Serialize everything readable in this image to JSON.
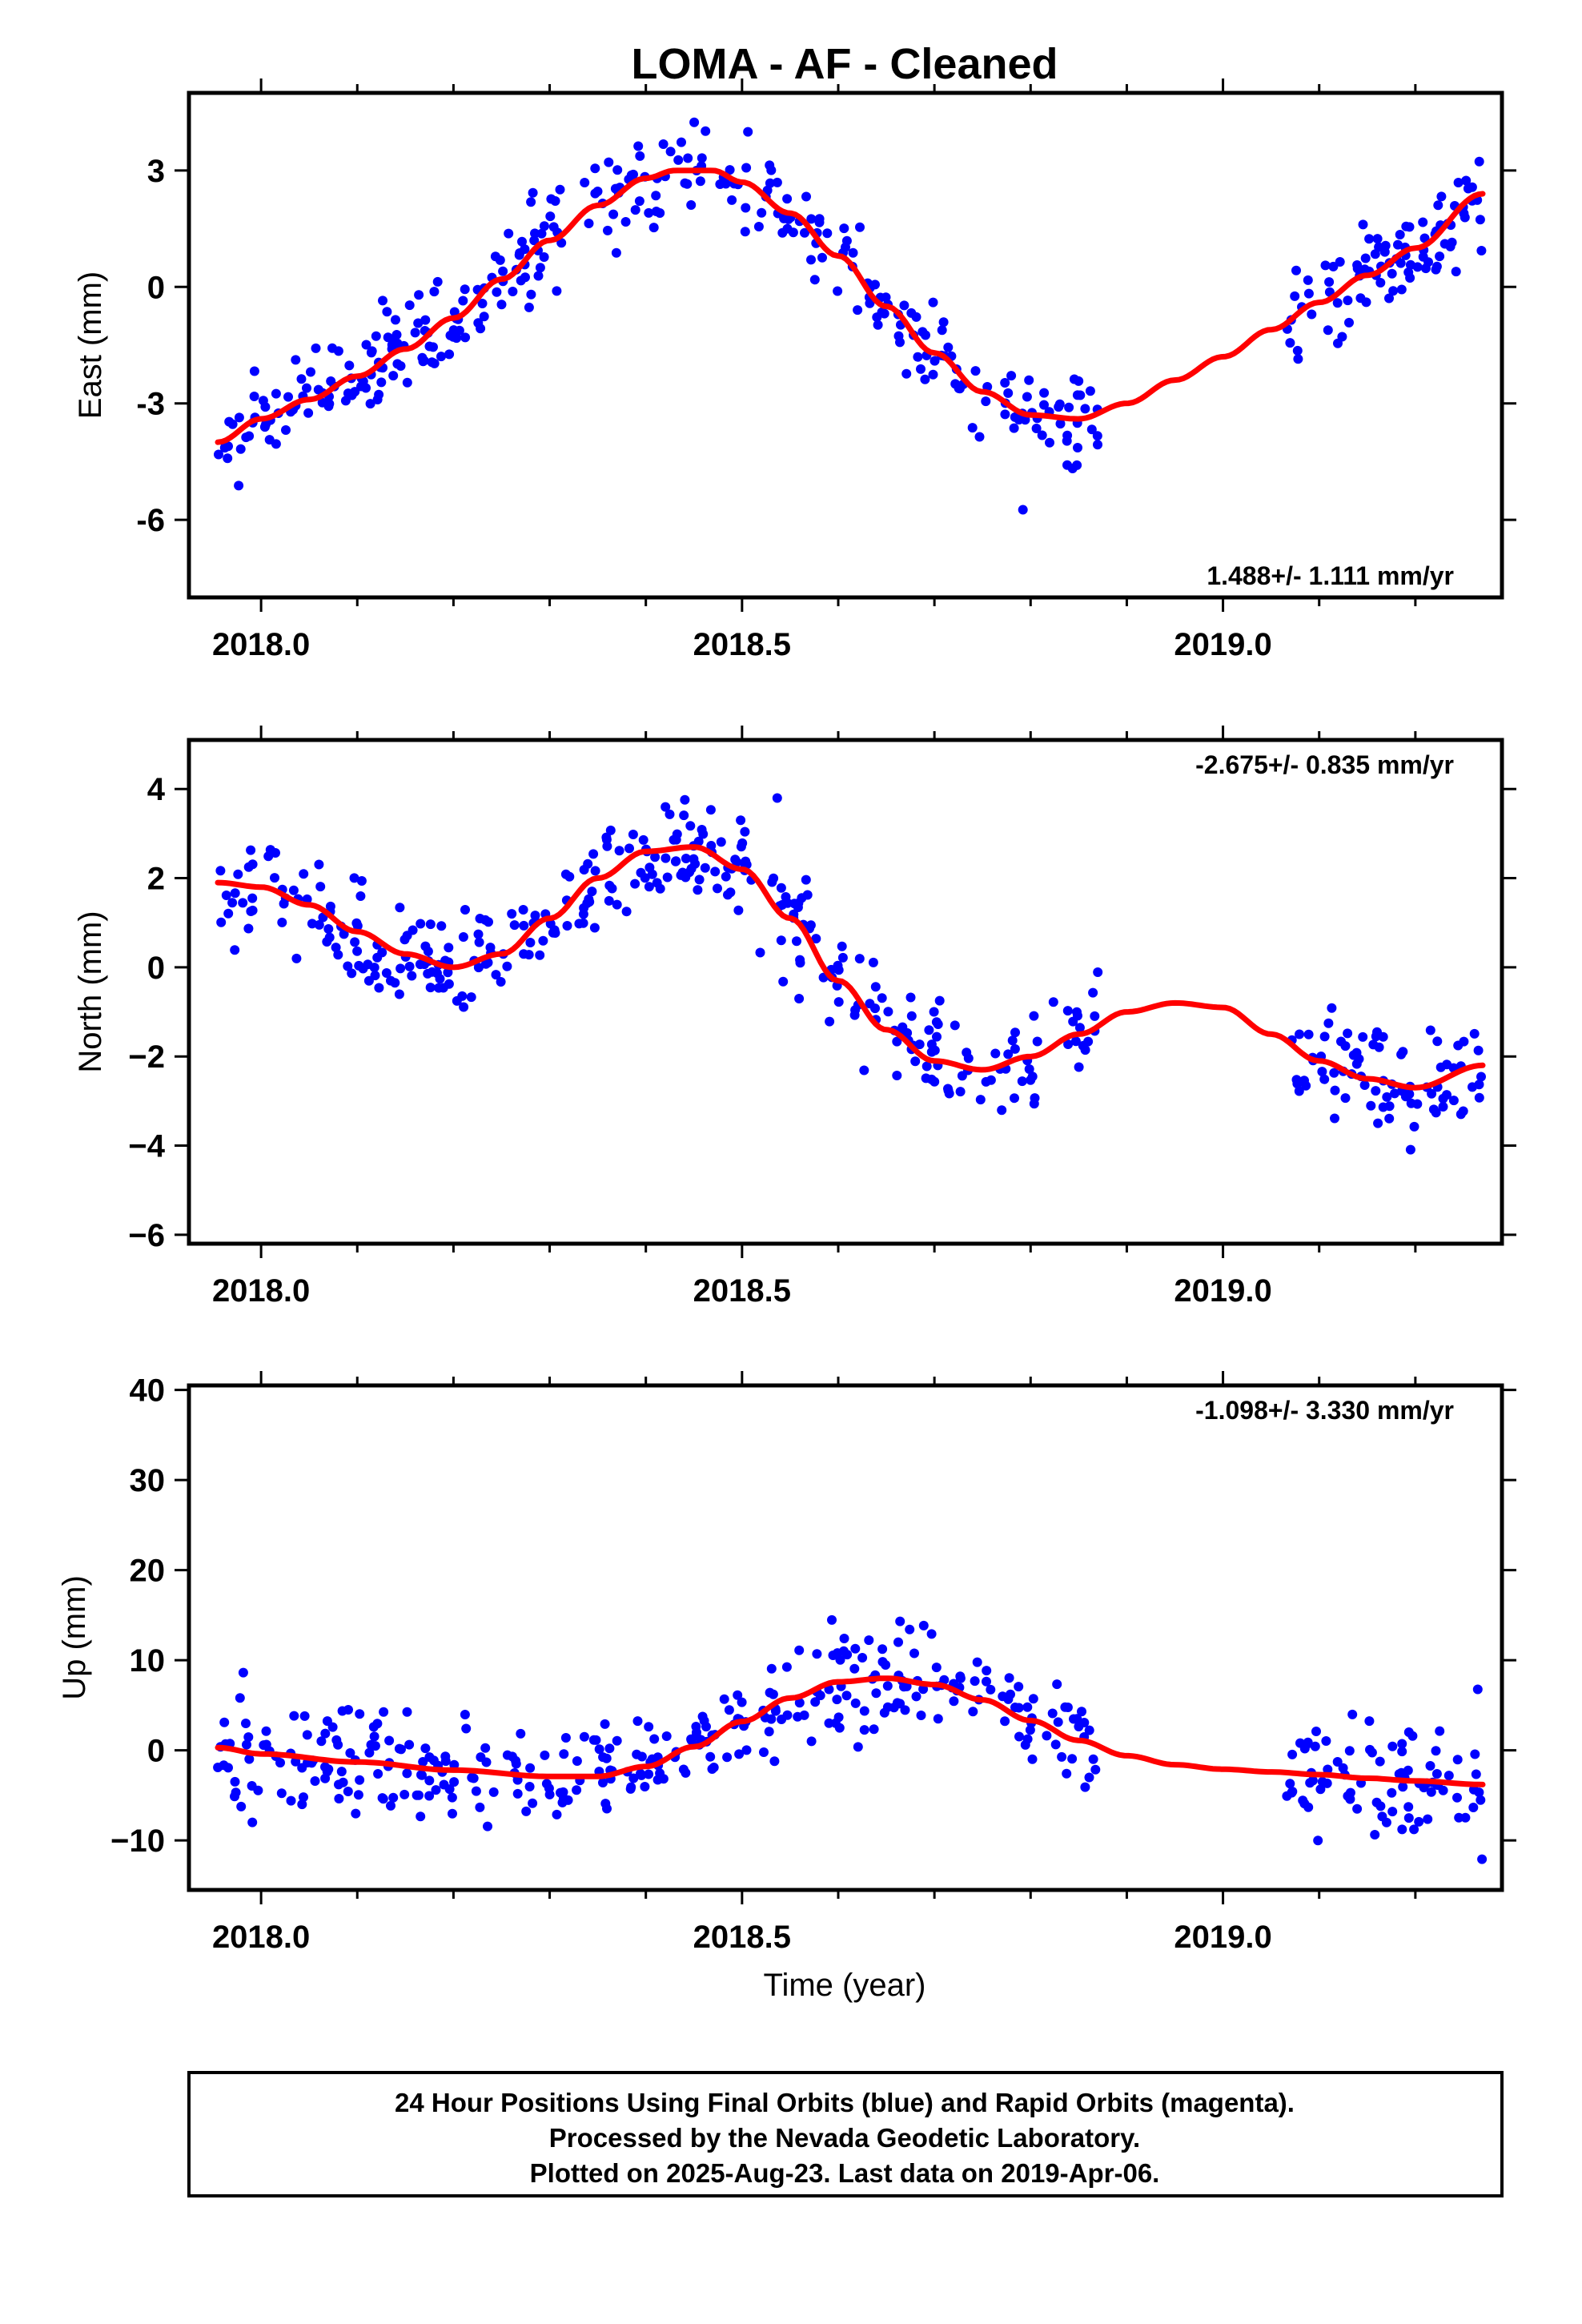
{
  "title": "LOMA  - AF - Cleaned",
  "colors": {
    "points": "#0000ff",
    "fit": "#ff0000",
    "frame": "#000000"
  },
  "footer": {
    "line1": "24 Hour Positions Using Final Orbits (blue) and Rapid Orbits (magenta).",
    "line2": "Processed by the Nevada Geodetic Laboratory.",
    "line3": "Plotted on 2025-Aug-23. Last data on 2019-Apr-06."
  },
  "chart_data": [
    {
      "type": "scatter",
      "ylabel": "East (mm)",
      "xlabel": "",
      "rate_label": "1.488+/- 1.111 mm/yr",
      "rate_position": "bottom-right",
      "xlim": [
        2017.925,
        2019.29
      ],
      "ylim": [
        -8.0,
        5.0
      ],
      "xticks": [
        "2018.0",
        "2018.5",
        "2019.0"
      ],
      "xtick_values": [
        2018.0,
        2018.5,
        2019.0
      ],
      "yticks": [
        "3",
        "0",
        "-3",
        "-6"
      ],
      "ytick_values": [
        3,
        0,
        -3,
        -6
      ],
      "fit": {
        "x": [
          2017.955,
          2018.0,
          2018.05,
          2018.1,
          2018.15,
          2018.2,
          2018.25,
          2018.3,
          2018.35,
          2018.4,
          2018.43,
          2018.47,
          2018.5,
          2018.55,
          2018.6,
          2018.65,
          2018.7,
          2018.75,
          2018.8,
          2018.85,
          2018.9,
          2018.95,
          2019.0,
          2019.05,
          2019.1,
          2019.15,
          2019.2,
          2019.27
        ],
        "y": [
          -4.0,
          -3.4,
          -2.9,
          -2.3,
          -1.6,
          -0.8,
          0.2,
          1.2,
          2.1,
          2.8,
          3.0,
          3.0,
          2.7,
          1.9,
          0.8,
          -0.5,
          -1.7,
          -2.7,
          -3.3,
          -3.4,
          -3.0,
          -2.4,
          -1.8,
          -1.1,
          -0.4,
          0.3,
          1.0,
          2.4
        ]
      },
      "points_model": {
        "kind": "fit_plus_scatter",
        "sigma": 0.85,
        "gaps": [
          [
            2018.87,
            2019.065
          ]
        ],
        "count": 430
      }
    },
    {
      "type": "scatter",
      "ylabel": "North (mm)",
      "xlabel": "",
      "rate_label": "-2.675+/- 0.835 mm/yr",
      "rate_position": "top-right",
      "xlim": [
        2017.925,
        2019.29
      ],
      "ylim": [
        -6.2,
        5.1
      ],
      "xticks": [
        "2018.0",
        "2018.5",
        "2019.0"
      ],
      "xtick_values": [
        2018.0,
        2018.5,
        2019.0
      ],
      "yticks": [
        "4",
        "2",
        "0",
        "−2",
        "−4",
        "−6"
      ],
      "ytick_values": [
        4,
        2,
        0,
        -2,
        -4,
        -6
      ],
      "fit": {
        "x": [
          2017.955,
          2018.0,
          2018.05,
          2018.1,
          2018.15,
          2018.2,
          2018.25,
          2018.3,
          2018.35,
          2018.4,
          2018.45,
          2018.5,
          2018.55,
          2018.6,
          2018.65,
          2018.7,
          2018.75,
          2018.8,
          2018.85,
          2018.9,
          2018.95,
          2019.0,
          2019.05,
          2019.1,
          2019.15,
          2019.2,
          2019.27
        ],
        "y": [
          1.9,
          1.8,
          1.4,
          0.8,
          0.3,
          0.0,
          0.3,
          1.1,
          2.0,
          2.6,
          2.7,
          2.2,
          1.1,
          -0.3,
          -1.4,
          -2.1,
          -2.3,
          -2.0,
          -1.5,
          -1.0,
          -0.8,
          -0.9,
          -1.5,
          -2.1,
          -2.5,
          -2.7,
          -2.2
        ]
      },
      "points_model": {
        "kind": "fit_plus_scatter",
        "sigma": 0.85,
        "gaps": [
          [
            2018.87,
            2019.065
          ]
        ],
        "count": 430
      }
    },
    {
      "type": "scatter",
      "ylabel": "Up (mm)",
      "xlabel": "Time (year)",
      "rate_label": "-1.098+/- 3.330 mm/yr",
      "rate_position": "top-right",
      "xlim": [
        2017.925,
        2019.29
      ],
      "ylim": [
        -15.5,
        40.5
      ],
      "xticks": [
        "2018.0",
        "2018.5",
        "2019.0"
      ],
      "xtick_values": [
        2018.0,
        2018.5,
        2019.0
      ],
      "yticks": [
        "40",
        "30",
        "20",
        "10",
        "0",
        "−10"
      ],
      "ytick_values": [
        40,
        30,
        20,
        10,
        0,
        -10
      ],
      "fit": {
        "x": [
          2017.955,
          2018.0,
          2018.1,
          2018.2,
          2018.3,
          2018.35,
          2018.4,
          2018.45,
          2018.5,
          2018.55,
          2018.6,
          2018.65,
          2018.7,
          2018.75,
          2018.8,
          2018.85,
          2018.9,
          2018.95,
          2019.0,
          2019.05,
          2019.1,
          2019.15,
          2019.2,
          2019.27
        ],
        "y": [
          0.3,
          -0.4,
          -1.3,
          -2.2,
          -2.9,
          -2.9,
          -1.8,
          0.4,
          3.2,
          5.8,
          7.6,
          8.0,
          7.3,
          5.6,
          3.3,
          1.1,
          -0.6,
          -1.6,
          -2.1,
          -2.4,
          -2.7,
          -3.1,
          -3.4,
          -3.8
        ]
      },
      "points_model": {
        "kind": "fit_plus_scatter",
        "sigma": 4.2,
        "gaps": [
          [
            2018.87,
            2019.065
          ]
        ],
        "count": 430
      }
    }
  ]
}
